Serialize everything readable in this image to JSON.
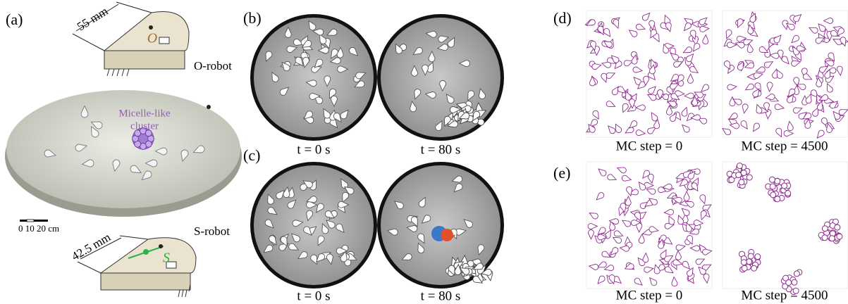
{
  "panels": {
    "a": {
      "label": "(a)",
      "o_robot": {
        "length": "55 mm",
        "marker": "O",
        "name": "O-robot"
      },
      "cluster_label": [
        "Micelle-like",
        "cluster"
      ],
      "scale_bar": "0 10 20 cm",
      "s_robot": {
        "length": "42.5 mm",
        "marker": "S",
        "name": "S-robot"
      }
    },
    "b": {
      "label": "(b)",
      "captions": [
        "t = 0 s",
        "t = 80 s"
      ]
    },
    "c": {
      "label": "(c)",
      "captions": [
        "t = 0 s",
        "t = 80 s"
      ]
    },
    "d": {
      "label": "(d)",
      "captions": [
        "MC step = 0",
        "MC step = 4500"
      ]
    },
    "e": {
      "label": "(e)",
      "captions": [
        "MC step = 0",
        "MC step = 4500"
      ]
    }
  }
}
